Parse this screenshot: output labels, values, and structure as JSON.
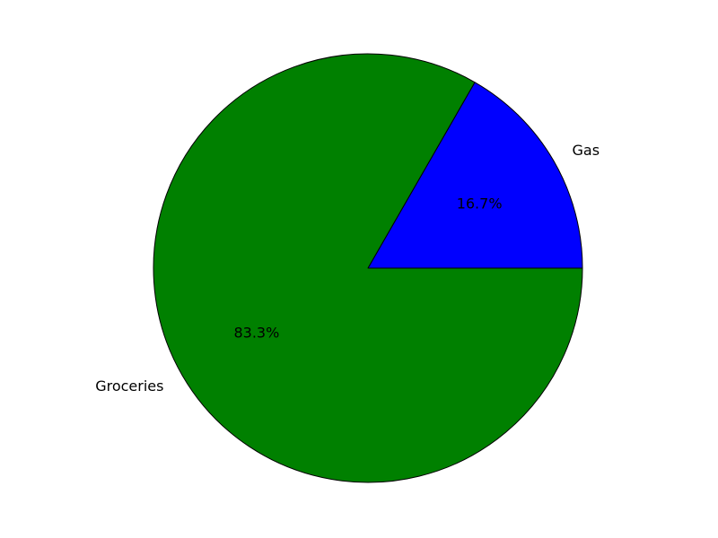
{
  "chart_data": {
    "type": "pie",
    "title": "",
    "start_angle_deg": 0,
    "direction": "counterclockwise",
    "slices": [
      {
        "label": "Gas",
        "value": 16.7,
        "pct_label": "16.7%",
        "color": "#0000ff"
      },
      {
        "label": "Groceries",
        "value": 83.3,
        "pct_label": "83.3%",
        "color": "#008000"
      }
    ]
  }
}
